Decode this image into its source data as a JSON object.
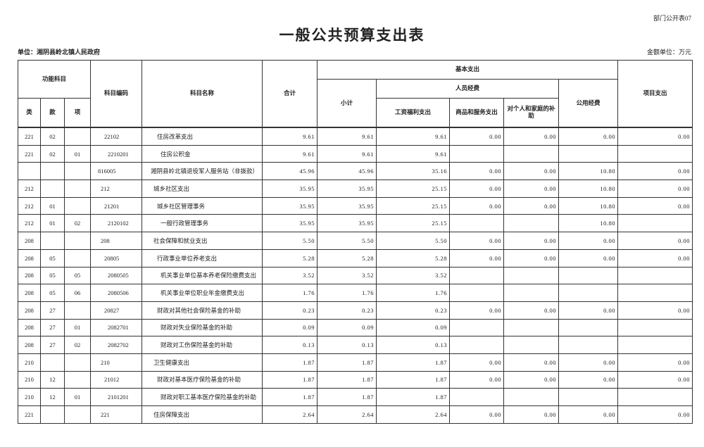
{
  "form_no": "部门公开表07",
  "title": "一般公共预算支出表",
  "unit": "单位：湘阴县岭北镇人民政府",
  "money_unit": "金额单位：万元",
  "headers": {
    "func": "功能科目",
    "lei": "类",
    "kuan": "款",
    "xiang": "项",
    "code": "科目编码",
    "name": "科目名称",
    "total": "合计",
    "basic": "基本支出",
    "subtotal": "小计",
    "personnel": "人员经费",
    "wage": "工资福利支出",
    "goods": "商品和服务支出",
    "personal": "对个人和家庭的补助",
    "public": "公用经费",
    "project": "项目支出"
  },
  "rows": [
    [
      "221",
      "02",
      "",
      "22102",
      "住房改革支出",
      "9.61",
      "9.61",
      "9.61",
      "0.00",
      "0.00",
      "0.00",
      "0.00"
    ],
    [
      "221",
      "02",
      "01",
      "2210201",
      "住房公积金",
      "9.61",
      "9.61",
      "9.61",
      "",
      "",
      "",
      ""
    ],
    [
      "",
      "",
      "",
      "816005",
      "湘阴县岭北镇退役军人服务站（非拨款）",
      "45.96",
      "45.96",
      "35.16",
      "0.00",
      "0.00",
      "10.80",
      "0.00"
    ],
    [
      "212",
      "",
      "",
      "212",
      "城乡社区支出",
      "35.95",
      "35.95",
      "25.15",
      "0.00",
      "0.00",
      "10.80",
      "0.00"
    ],
    [
      "212",
      "01",
      "",
      "21201",
      "城乡社区管理事务",
      "35.95",
      "35.95",
      "25.15",
      "0.00",
      "0.00",
      "10.80",
      "0.00"
    ],
    [
      "212",
      "01",
      "02",
      "2120102",
      "一般行政管理事务",
      "35.95",
      "35.95",
      "25.15",
      "",
      "",
      "10.80",
      ""
    ],
    [
      "208",
      "",
      "",
      "208",
      "社会保障和就业支出",
      "5.50",
      "5.50",
      "5.50",
      "0.00",
      "0.00",
      "0.00",
      "0.00"
    ],
    [
      "208",
      "05",
      "",
      "20805",
      "行政事业单位养老支出",
      "5.28",
      "5.28",
      "5.28",
      "0.00",
      "0.00",
      "0.00",
      "0.00"
    ],
    [
      "208",
      "05",
      "05",
      "2080505",
      "机关事业单位基本养老保险缴费支出",
      "3.52",
      "3.52",
      "3.52",
      "",
      "",
      "",
      ""
    ],
    [
      "208",
      "05",
      "06",
      "2080506",
      "机关事业单位职业年金缴费支出",
      "1.76",
      "1.76",
      "1.76",
      "",
      "",
      "",
      ""
    ],
    [
      "208",
      "27",
      "",
      "20827",
      "财政对其他社会保险基金的补助",
      "0.23",
      "0.23",
      "0.23",
      "0.00",
      "0.00",
      "0.00",
      "0.00"
    ],
    [
      "208",
      "27",
      "01",
      "2082701",
      "财政对失业保险基金的补助",
      "0.09",
      "0.09",
      "0.09",
      "",
      "",
      "",
      ""
    ],
    [
      "208",
      "27",
      "02",
      "2082702",
      "财政对工伤保险基金的补助",
      "0.13",
      "0.13",
      "0.13",
      "",
      "",
      "",
      ""
    ],
    [
      "210",
      "",
      "",
      "210",
      "卫生健康支出",
      "1.87",
      "1.87",
      "1.87",
      "0.00",
      "0.00",
      "0.00",
      "0.00"
    ],
    [
      "210",
      "12",
      "",
      "21012",
      "财政对基本医疗保险基金的补助",
      "1.87",
      "1.87",
      "1.87",
      "0.00",
      "0.00",
      "0.00",
      "0.00"
    ],
    [
      "210",
      "12",
      "01",
      "2101201",
      "财政对职工基本医疗保险基金的补助",
      "1.87",
      "1.87",
      "1.87",
      "",
      "",
      "",
      ""
    ],
    [
      "221",
      "",
      "",
      "221",
      "住房保障支出",
      "2.64",
      "2.64",
      "2.64",
      "0.00",
      "0.00",
      "0.00",
      "0.00"
    ]
  ]
}
